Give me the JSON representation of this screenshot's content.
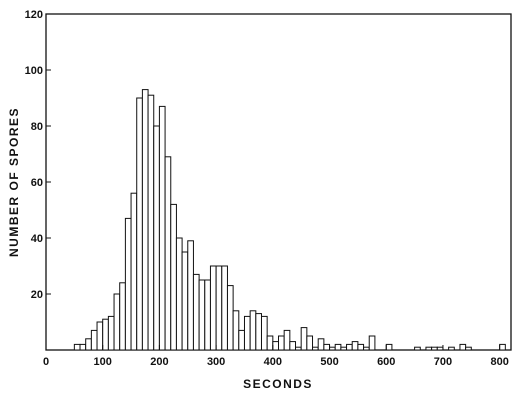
{
  "chart_data": {
    "type": "bar",
    "title": "",
    "xlabel": "SECONDS",
    "ylabel": "NUMBER OF SPORES",
    "xlim": [
      0,
      820
    ],
    "ylim": [
      0,
      120
    ],
    "x_ticks": [
      0,
      100,
      200,
      300,
      400,
      500,
      600,
      700,
      800
    ],
    "y_ticks": [
      0,
      20,
      40,
      60,
      80,
      100,
      120
    ],
    "bin_width": 10,
    "grid": false,
    "bins": [
      {
        "x": 50,
        "value": 2
      },
      {
        "x": 60,
        "value": 2
      },
      {
        "x": 70,
        "value": 4
      },
      {
        "x": 80,
        "value": 7
      },
      {
        "x": 90,
        "value": 10
      },
      {
        "x": 100,
        "value": 11
      },
      {
        "x": 110,
        "value": 12
      },
      {
        "x": 120,
        "value": 20
      },
      {
        "x": 130,
        "value": 24
      },
      {
        "x": 140,
        "value": 47
      },
      {
        "x": 150,
        "value": 56
      },
      {
        "x": 160,
        "value": 90
      },
      {
        "x": 170,
        "value": 93
      },
      {
        "x": 180,
        "value": 91
      },
      {
        "x": 190,
        "value": 80
      },
      {
        "x": 200,
        "value": 87
      },
      {
        "x": 210,
        "value": 69
      },
      {
        "x": 220,
        "value": 52
      },
      {
        "x": 230,
        "value": 40
      },
      {
        "x": 240,
        "value": 35
      },
      {
        "x": 250,
        "value": 39
      },
      {
        "x": 260,
        "value": 27
      },
      {
        "x": 270,
        "value": 25
      },
      {
        "x": 280,
        "value": 25
      },
      {
        "x": 290,
        "value": 30
      },
      {
        "x": 300,
        "value": 30
      },
      {
        "x": 310,
        "value": 30
      },
      {
        "x": 320,
        "value": 23
      },
      {
        "x": 330,
        "value": 14
      },
      {
        "x": 340,
        "value": 7
      },
      {
        "x": 350,
        "value": 12
      },
      {
        "x": 360,
        "value": 14
      },
      {
        "x": 370,
        "value": 13
      },
      {
        "x": 380,
        "value": 12
      },
      {
        "x": 390,
        "value": 5
      },
      {
        "x": 400,
        "value": 3
      },
      {
        "x": 410,
        "value": 5
      },
      {
        "x": 420,
        "value": 7
      },
      {
        "x": 430,
        "value": 3
      },
      {
        "x": 440,
        "value": 1
      },
      {
        "x": 450,
        "value": 8
      },
      {
        "x": 460,
        "value": 5
      },
      {
        "x": 470,
        "value": 1
      },
      {
        "x": 480,
        "value": 4
      },
      {
        "x": 490,
        "value": 2
      },
      {
        "x": 500,
        "value": 1
      },
      {
        "x": 510,
        "value": 2
      },
      {
        "x": 520,
        "value": 1
      },
      {
        "x": 530,
        "value": 2
      },
      {
        "x": 540,
        "value": 3
      },
      {
        "x": 550,
        "value": 2
      },
      {
        "x": 560,
        "value": 1
      },
      {
        "x": 570,
        "value": 5
      },
      {
        "x": 600,
        "value": 2
      },
      {
        "x": 650,
        "value": 1
      },
      {
        "x": 670,
        "value": 1
      },
      {
        "x": 680,
        "value": 1
      },
      {
        "x": 690,
        "value": 1
      },
      {
        "x": 710,
        "value": 1
      },
      {
        "x": 730,
        "value": 2
      },
      {
        "x": 740,
        "value": 1
      },
      {
        "x": 800,
        "value": 2
      }
    ]
  }
}
